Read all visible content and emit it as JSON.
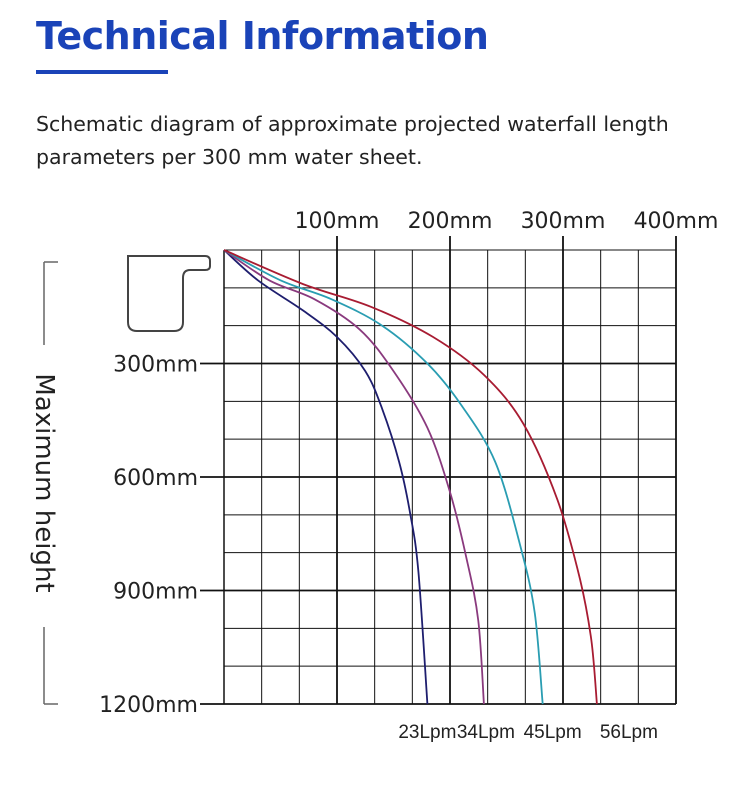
{
  "header": {
    "title": "Technical Information",
    "description": "Schematic diagram of approximate projected waterfall length parameters per 300 mm water sheet."
  },
  "colors": {
    "title": "#1a43b8",
    "grid": "#111111"
  },
  "chart_data": {
    "type": "line",
    "title": "",
    "xlabel": "",
    "ylabel": "Maximum height",
    "x_axis_position": "top",
    "x_ticks": [
      100,
      200,
      300,
      400
    ],
    "x_tick_labels": [
      "100mm",
      "200mm",
      "300mm",
      "400mm"
    ],
    "y_ticks": [
      300,
      600,
      900,
      1200
    ],
    "y_tick_labels": [
      "300mm",
      "600mm",
      "900mm",
      "1200mm"
    ],
    "xlim": [
      0,
      400
    ],
    "ylim": [
      0,
      1200
    ],
    "grid": true,
    "grid_step_x": 33.3,
    "grid_step_y": 100,
    "series": [
      {
        "name": "23Lpm",
        "color": "#1e1e6e",
        "x": [
          0,
          30,
          70,
          100,
          125,
          140,
          155,
          165,
          172,
          180
        ],
        "y": [
          0,
          80,
          160,
          230,
          320,
          420,
          560,
          700,
          850,
          1200
        ]
      },
      {
        "name": "34Lpm",
        "color": "#8a3a7e",
        "x": [
          0,
          40,
          80,
          120,
          150,
          180,
          200,
          215,
          225,
          230
        ],
        "y": [
          0,
          80,
          130,
          210,
          320,
          470,
          640,
          820,
          980,
          1200
        ]
      },
      {
        "name": "45Lpm",
        "color": "#2a9db2",
        "x": [
          0,
          50,
          95,
          140,
          180,
          210,
          240,
          262,
          275,
          282
        ],
        "y": [
          0,
          80,
          130,
          200,
          300,
          410,
          560,
          780,
          960,
          1200
        ]
      },
      {
        "name": "56Lpm",
        "color": "#a81c32",
        "x": [
          0,
          70,
          130,
          185,
          230,
          265,
          295,
          315,
          325,
          330
        ],
        "y": [
          0,
          90,
          150,
          230,
          330,
          460,
          660,
          870,
          1030,
          1200
        ]
      }
    ]
  }
}
